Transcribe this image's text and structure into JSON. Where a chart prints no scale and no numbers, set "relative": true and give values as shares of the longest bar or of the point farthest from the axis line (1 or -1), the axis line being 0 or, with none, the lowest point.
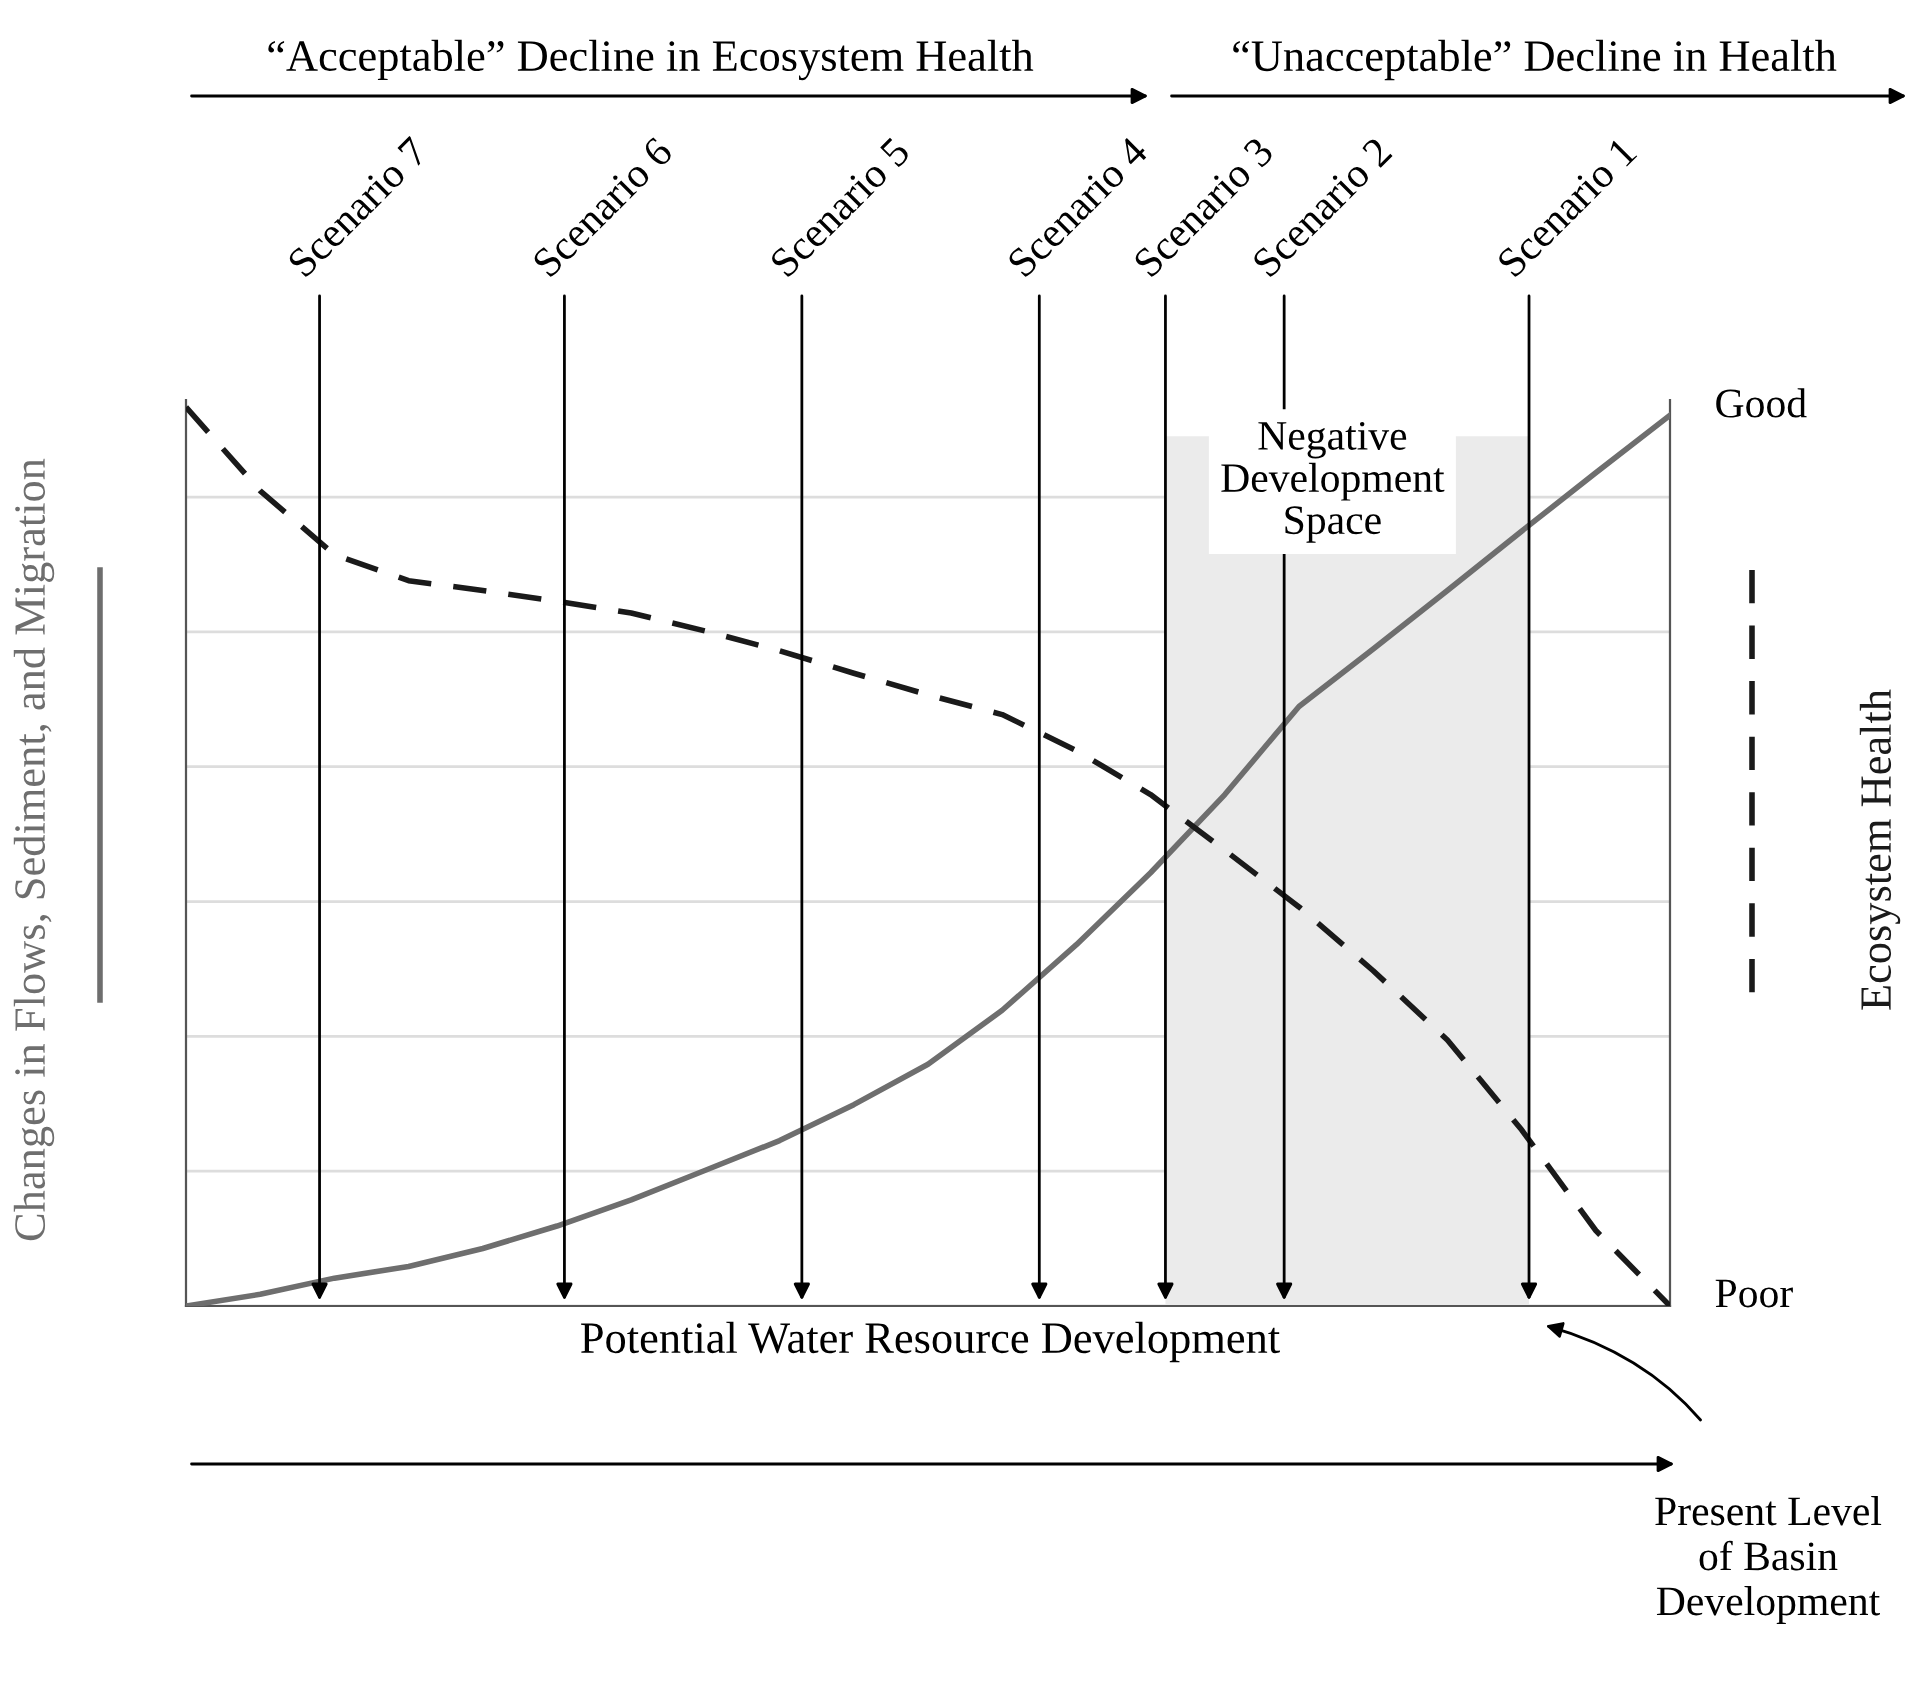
{
  "chart_data": {
    "type": "line",
    "relative": true,
    "grid": "y",
    "legend": false,
    "xlabel": "Potential Water Resource Development",
    "categories": [
      null,
      null,
      null,
      null,
      null,
      null,
      null,
      null,
      null,
      null,
      null,
      null,
      null,
      null,
      null,
      null,
      null,
      null,
      null,
      null,
      null
    ],
    "series": [
      {
        "name": "Changes in Flows, Sediment, and Migration",
        "color": "#6e6e6e",
        "line_style": "solid",
        "values": [
          0,
          0.013,
          0.031,
          0.044,
          0.064,
          0.089,
          0.118,
          0.151,
          0.184,
          0.224,
          0.269,
          0.329,
          0.402,
          0.482,
          0.569,
          0.667,
          0.731,
          0.796,
          0.862,
          0.927,
          0.991
        ]
      },
      {
        "name": "Ecosystem Health",
        "color": "#1a1a1a",
        "line_style": "dashed",
        "values": [
          1.0,
          0.907,
          0.836,
          0.807,
          0.796,
          0.784,
          0.771,
          0.751,
          0.729,
          0.704,
          0.68,
          0.658,
          0.618,
          0.569,
          0.507,
          0.444,
          0.373,
          0.296,
          0.196,
          0.084,
          0
        ]
      }
    ],
    "annotations": [
      "Negative\nDevelopment\nSpace",
      "Scenario 7",
      "Scenario 6",
      "Scenario 5",
      "Scenario 4",
      "Scenario 3",
      "Scenario 2",
      "Scenario 1",
      "“Acceptable” Decline in Ecosystem Health",
      "“Unacceptable” Decline in Health",
      "Good",
      "Poor",
      "Present Level\nof Basin\nDevelopment"
    ]
  }
}
